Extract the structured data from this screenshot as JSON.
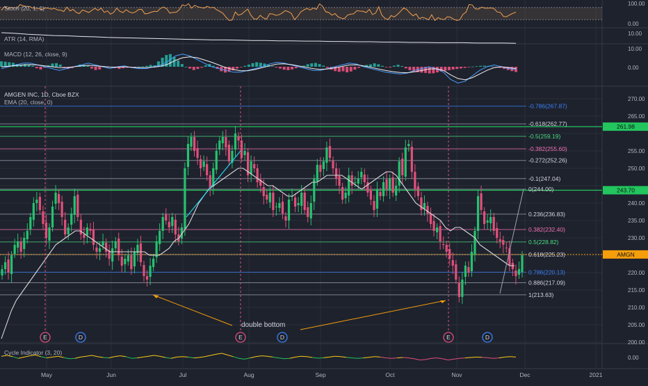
{
  "panes": {
    "stoch": {
      "label": "Stoch (20, 1, 1)",
      "ticks": [
        "100.00",
        "0.00"
      ]
    },
    "atr": {
      "label": "ATR (14, RMA)",
      "ticks": [
        "10.00"
      ]
    },
    "macd": {
      "label": "MACD (12, 26, close, 9)",
      "ticks": [
        "10.00",
        "0.00"
      ]
    },
    "cycle": {
      "label": "Cycle Indicator (3, 20)",
      "ticks": [
        "0.00"
      ]
    }
  },
  "main": {
    "title": "AMGEN INC, 1D, Cboe BZX",
    "ema_label": "EMA (20, close, 0)",
    "symbol_tag": "AMGN",
    "annotation": "double bottom"
  },
  "chart_data": {
    "type": "candlestick",
    "title": "AMGEN INC, 1D, Cboe BZX",
    "ylim": [
      200,
      272
    ],
    "y_ticks": [
      200,
      205,
      210,
      215,
      220,
      225,
      230,
      235,
      240,
      245,
      250,
      255,
      260,
      265,
      270
    ],
    "y_tick_labels": [
      "200.00",
      "205.00",
      "210.00",
      "215.00",
      "220.00",
      "225.00",
      "230.00",
      "235.00",
      "240.00",
      "245.00",
      "250.00",
      "255.00",
      "260.00",
      "265.00",
      "270.00"
    ],
    "x_labels": [
      "May",
      "Jun",
      "Jul",
      "Aug",
      "Sep",
      "Oct",
      "Nov",
      "Dec",
      "2021"
    ],
    "current_price": 225.23,
    "price_badges": [
      {
        "value": 261.98,
        "label": "261.98",
        "color": "#22c55e"
      },
      {
        "value": 243.7,
        "label": "243.70",
        "color": "#22c55e"
      },
      {
        "value": 225.23,
        "label": "AMGN",
        "color": "#f59e0b"
      }
    ],
    "fib_levels": [
      {
        "ratio": "-0.786",
        "value": 267.87,
        "label": "-0.786(267.87)",
        "color": "#3b82f6"
      },
      {
        "ratio": "-0.618",
        "value": 262.77,
        "label": "-0.618(262.77)",
        "color": "#9ca3af"
      },
      {
        "ratio": "-0.5",
        "value": 259.19,
        "label": "-0.5(259.19)",
        "color": "#4ade80"
      },
      {
        "ratio": "-0.382",
        "value": 255.6,
        "label": "-0.382(255.60)",
        "color": "#f472b6"
      },
      {
        "ratio": "-0.272",
        "value": 252.26,
        "label": "-0.272(252.26)",
        "color": "#9ca3af"
      },
      {
        "ratio": "-0.1",
        "value": 247.04,
        "label": "-0.1(247.04)",
        "color": "#9ca3af"
      },
      {
        "ratio": "0",
        "value": 244.0,
        "label": "0(244.00)",
        "color": "#9ca3af"
      },
      {
        "ratio": "0.236",
        "value": 236.83,
        "label": "0.236(236.83)",
        "color": "#9ca3af"
      },
      {
        "ratio": "0.382",
        "value": 232.4,
        "label": "0.382(232.40)",
        "color": "#f472b6"
      },
      {
        "ratio": "0.5",
        "value": 228.82,
        "label": "0.5(228.82)",
        "color": "#4ade80"
      },
      {
        "ratio": "0.618",
        "value": 225.23,
        "label": "0.618(225.23)",
        "color": "#9ca3af"
      },
      {
        "ratio": "0.786",
        "value": 220.13,
        "label": "0.786(220.13)",
        "color": "#3b82f6"
      },
      {
        "ratio": "0.886",
        "value": 217.09,
        "label": "0.886(217.09)",
        "color": "#9ca3af"
      },
      {
        "ratio": "1",
        "value": 213.63,
        "label": "1(213.63)",
        "color": "#9ca3af"
      }
    ],
    "horizontal_lines": [
      {
        "value": 261.98,
        "color": "#22c55e"
      },
      {
        "value": 243.7,
        "color": "#22c55e"
      }
    ],
    "closes": [
      221,
      223,
      220,
      225,
      228,
      229,
      226,
      230,
      232,
      236,
      240,
      241,
      238,
      234,
      230,
      233,
      239,
      243,
      240,
      236,
      231,
      233,
      237,
      242,
      236,
      231,
      230,
      233,
      232,
      228,
      226,
      227,
      229,
      226,
      224,
      227,
      229,
      225,
      222,
      224,
      225,
      221,
      226,
      228,
      223,
      219,
      218,
      222,
      224,
      229,
      232,
      236,
      235,
      233,
      236,
      231,
      229,
      233,
      250,
      257,
      259,
      255,
      253,
      250,
      252,
      248,
      244,
      250,
      255,
      258,
      259,
      256,
      252,
      255,
      260,
      258,
      253,
      255,
      248,
      252,
      250,
      246,
      245,
      242,
      241,
      243,
      238,
      239,
      240,
      237,
      235,
      241,
      242,
      239,
      240,
      243,
      238,
      236,
      240,
      247,
      251,
      249,
      252,
      256,
      253,
      250,
      247,
      245,
      241,
      243,
      248,
      245,
      246,
      247,
      249,
      246,
      243,
      241,
      238,
      244,
      242,
      246,
      244,
      247,
      243,
      245,
      252,
      248,
      256,
      257,
      249,
      244,
      242,
      238,
      240,
      237,
      234,
      232,
      233,
      229,
      228,
      226,
      224,
      222,
      218,
      213,
      218,
      222,
      220,
      226,
      232,
      242,
      238,
      234,
      235,
      236,
      232,
      230,
      229,
      228,
      227,
      222,
      221,
      219,
      221,
      225
    ],
    "ema_closes": [
      201,
      205,
      209,
      212,
      214,
      216,
      218,
      220,
      222,
      224,
      226,
      228,
      229,
      230,
      231,
      232,
      232,
      231,
      230,
      229,
      228,
      227,
      226,
      226,
      226,
      226,
      226,
      226,
      226,
      226,
      225,
      225,
      225,
      226,
      227,
      229,
      230,
      232,
      234,
      237,
      240,
      242,
      244,
      245,
      246,
      247,
      248,
      249,
      250,
      250,
      249,
      248,
      247,
      246,
      245,
      245,
      244,
      243,
      242,
      242,
      243,
      244,
      245,
      246,
      246,
      247,
      248,
      248,
      248,
      248,
      247,
      246,
      245,
      244,
      245,
      246,
      247,
      248,
      249,
      249,
      248,
      246,
      244,
      242,
      240,
      239,
      238,
      237,
      236,
      235,
      233,
      232,
      233,
      233,
      232,
      231,
      230,
      228,
      227,
      226,
      225,
      224,
      223,
      222,
      222
    ],
    "double_bottom": {
      "first_low": 213.6,
      "second_low": 211.0
    },
    "cycle_markers": [
      "E",
      "D",
      "E",
      "D",
      "E",
      "D"
    ],
    "stoch_k": [
      66,
      85,
      73,
      81,
      79,
      76,
      95,
      88,
      86,
      85,
      78,
      77,
      75,
      70,
      78,
      77,
      72,
      76,
      68,
      67,
      60,
      82,
      63,
      71,
      56,
      50,
      68,
      62,
      55,
      66,
      76,
      66,
      77,
      56,
      63,
      47,
      56,
      77,
      61,
      55,
      69,
      58,
      53,
      58,
      70,
      71,
      49,
      50,
      57,
      61,
      60,
      76,
      82,
      74,
      52,
      56,
      56,
      68,
      93,
      88,
      99,
      77,
      91,
      83,
      80,
      77,
      86,
      79,
      81,
      69,
      61,
      52,
      33,
      16,
      18,
      58,
      42,
      47,
      60,
      72,
      42,
      23,
      23,
      41,
      29,
      22,
      49,
      48,
      41,
      44,
      52,
      64,
      60,
      50,
      20,
      36,
      58,
      68,
      76,
      68,
      77,
      71,
      98,
      87,
      59,
      55,
      42,
      50,
      33,
      27,
      25,
      42,
      47,
      49,
      64,
      62,
      61,
      55,
      71,
      45,
      52,
      84,
      42,
      27,
      20,
      40,
      33,
      46,
      61,
      78,
      70,
      53,
      39,
      48,
      25,
      31,
      27,
      19,
      44,
      16,
      30,
      23,
      20,
      34,
      32,
      22,
      16,
      19,
      46,
      57,
      95,
      92,
      73,
      72,
      82,
      77,
      77,
      78,
      75,
      58,
      56,
      36,
      34,
      43,
      51,
      57
    ],
    "atr": [
      12.5,
      12.3,
      12.0,
      11.8,
      11.6,
      11.5,
      11.3,
      11.2,
      11.0,
      10.9,
      10.8,
      10.7,
      10.6,
      10.5,
      10.4,
      10.3,
      10.2,
      10.2,
      10.1,
      10.0,
      10.0,
      9.9,
      9.9,
      9.8,
      9.8,
      9.7,
      9.7,
      9.6,
      9.6,
      9.5,
      9.5,
      9.4,
      9.4,
      9.3,
      9.3,
      9.3,
      9.2,
      9.2,
      9.2,
      9.1
    ],
    "macd_hist": [
      3.0,
      2.8,
      2.5,
      2.2,
      1.5,
      1.2,
      1.5,
      1.0,
      0.5,
      -0.8,
      -1.5,
      -0.5,
      0.8,
      1.8,
      2.0,
      1.2,
      -0.5,
      -1.2,
      -0.8,
      0.3,
      1.2,
      1.0,
      0.5,
      -1.0,
      -1.8,
      -1.5,
      -0.3,
      0.2,
      -0.2,
      -0.8,
      -1.2,
      -0.8,
      -0.5,
      -0.3,
      -0.1,
      0.1,
      0.2,
      0.5,
      1.0,
      0.8,
      3.0,
      5.0,
      6.5,
      7.0,
      5.5,
      3.5,
      1.5,
      0.0,
      -1.0,
      -1.8,
      -1.2,
      -0.5,
      0.8,
      1.5,
      0.5,
      -1.2,
      -2.5,
      -3.2,
      -2.8,
      -2.0,
      -1.0,
      -0.3,
      0.5,
      1.2,
      2.0,
      2.5,
      2.2,
      1.8,
      1.0,
      0.3,
      -0.4,
      -1.0,
      -1.6,
      -1.9,
      -1.5,
      -0.8,
      -0.1,
      0.6,
      1.4,
      1.9,
      2.1,
      1.5,
      0.6,
      -0.6,
      -1.6,
      -2.4,
      -2.8,
      -2.5,
      -3.1,
      -2.6,
      -1.6,
      -0.6,
      0.4,
      1.0,
      1.3,
      1.9,
      1.4,
      0.5,
      -0.3,
      -0.4,
      0.6,
      1.1,
      0.4,
      -0.9,
      -1.9,
      -2.6,
      -3.0,
      -3.2,
      -3.4,
      -3.7,
      -3.6,
      -3.1,
      -2.6,
      -2.2,
      -1.9,
      -1.5,
      -1.2,
      -0.9,
      -0.6,
      -0.3,
      0.1,
      0.3,
      0.5,
      0.6,
      0.5,
      0.2,
      -0.2,
      -0.6,
      -1.2,
      -1.8,
      -2.4,
      -2.9
    ],
    "macd_line": [
      -1.0,
      0.0,
      1.0,
      2.0,
      2.0,
      1.0,
      0.0,
      -1.0,
      -2.0,
      -1.0,
      0.0,
      1.0,
      2.0,
      1.0,
      0.0,
      -1.0,
      0.0,
      0.5,
      -0.5,
      -1.0,
      -1.0,
      0.0,
      1.0,
      3.0,
      6.0,
      7.0,
      6.0,
      4.0,
      2.0,
      0.0,
      -1.0,
      -2.0,
      -3.0,
      -3.0,
      -2.0,
      -1.0,
      0.0,
      1.5,
      2.5,
      2.0,
      1.0,
      0.0,
      -1.0,
      -2.0,
      -2.0,
      -1.0,
      0.0,
      1.0,
      2.0,
      1.5,
      0.0,
      -1.0,
      -2.0,
      -3.0,
      -3.5,
      -4.0,
      -3.5,
      -2.0,
      -1.0,
      0.0,
      -1.0,
      -3.0,
      -7.0,
      -9.0,
      -8.0,
      -5.0,
      -2.0,
      0.0,
      1.0,
      0.0,
      -1.0,
      -1.5
    ],
    "macd_signal": [
      0.0,
      0.3,
      0.7,
      1.0,
      1.2,
      1.0,
      0.5,
      0.0,
      -0.5,
      -0.5,
      0.0,
      0.5,
      0.8,
      0.5,
      0.2,
      -0.2,
      -0.2,
      0.0,
      -0.3,
      -0.5,
      -0.5,
      -0.2,
      0.3,
      1.5,
      3.5,
      5.0,
      5.5,
      5.0,
      3.8,
      2.5,
      1.0,
      -0.5,
      -1.5,
      -2.2,
      -2.2,
      -1.5,
      -0.5,
      0.5,
      1.5,
      1.6,
      1.2,
      0.5,
      -0.3,
      -1.0,
      -1.5,
      -1.2,
      -0.6,
      0.2,
      1.0,
      1.1,
      0.5,
      -0.3,
      -1.2,
      -2.0,
      -2.7,
      -3.2,
      -3.3,
      -2.8,
      -2.0,
      -1.2,
      -1.1,
      -2.0,
      -4.5,
      -6.5,
      -7.2,
      -6.0,
      -4.0,
      -2.0,
      -0.5,
      0.0,
      -0.5,
      -1.0
    ],
    "cycle": [
      1.5,
      2.5,
      1.0,
      -1.0,
      0.5,
      2.0,
      3.0,
      1.0,
      -0.5,
      0.5,
      1.5,
      0.0,
      -1.5,
      -1.0,
      0.5,
      1.5,
      2.5,
      1.0,
      0.0,
      -0.5,
      1.0,
      2.0,
      1.0,
      -1.0,
      -0.5,
      0.5,
      1.5,
      2.5,
      1.5,
      0.0,
      -1.0,
      0.5,
      1.0,
      0.5,
      -0.5,
      0.0,
      1.0,
      2.5,
      4.0,
      5.0,
      3.0,
      1.0,
      -1.0,
      -2.0,
      -0.5,
      1.0,
      2.0,
      1.5,
      0.5,
      -0.5,
      -1.5,
      -1.0,
      0.5,
      1.5,
      1.0,
      0.0,
      -0.8,
      -0.3,
      0.5,
      1.5,
      1.0,
      0.2,
      -0.5,
      -1.0,
      -0.5,
      0.2,
      1.0,
      0.5,
      -0.5,
      -1.0,
      -0.5,
      0.0,
      -0.5,
      -1.5,
      -3.0,
      -2.5,
      -1.0,
      -0.5,
      -1.5,
      -3.0,
      -2.0,
      -1.0,
      -0.5,
      0.0,
      0.5,
      0.2,
      -0.3,
      -1.0,
      -0.5,
      0.5,
      1.0,
      0.5
    ]
  },
  "colors": {
    "background": "#1e222d",
    "up": "#26c26f",
    "down": "#e0507a",
    "ema": "#d8d8d8",
    "stoch": "#f0a050",
    "macd_line": "#4a9eff",
    "macd_signal": "#f0f0f0",
    "fib_blue": "#3b82f6",
    "annotation": "#f59e0b"
  }
}
